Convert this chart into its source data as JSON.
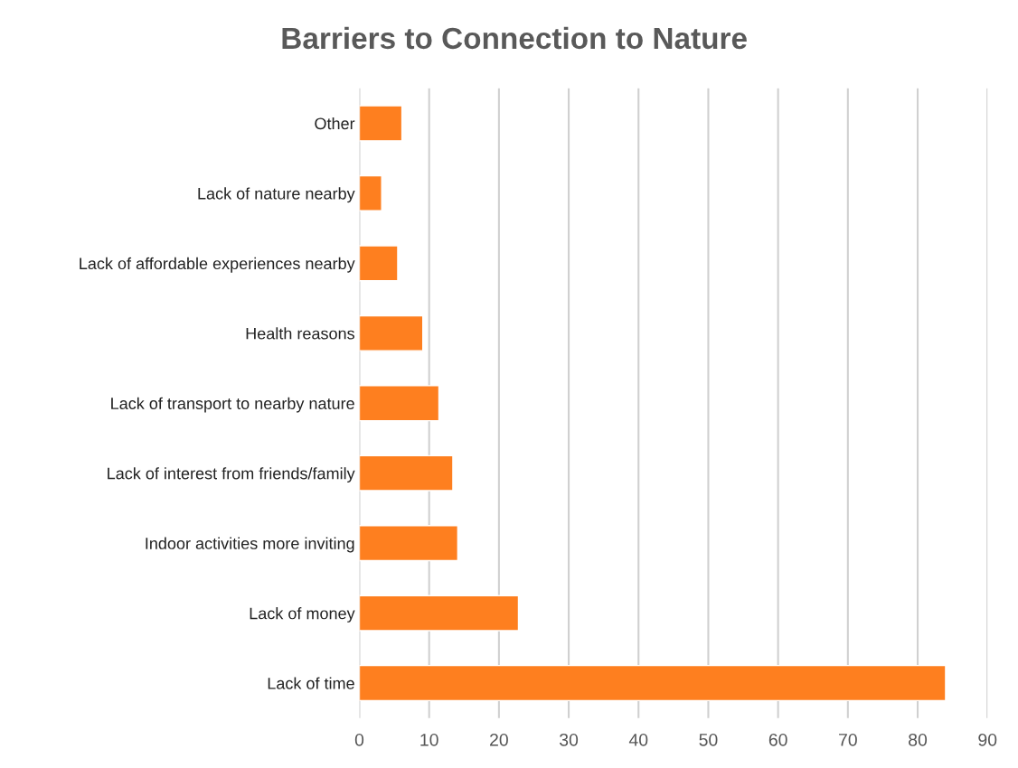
{
  "chart_data": {
    "type": "bar",
    "orientation": "horizontal",
    "title": "Barriers to Connection to Nature",
    "categories": [
      "Other",
      "Lack of nature nearby",
      "Lack of affordable experiences nearby",
      "Health reasons",
      "Lack of transport to nearby nature",
      "Lack of interest from friends/family",
      "Indoor activities more inviting",
      "Lack of money",
      "Lack of time"
    ],
    "values": [
      6.1,
      3.2,
      5.5,
      9.1,
      11.4,
      13.4,
      14.1,
      22.8,
      84.0
    ],
    "color": "#fe7f1f",
    "xlim": [
      0,
      90
    ],
    "xticks": [
      0,
      10,
      20,
      30,
      40,
      50,
      60,
      70,
      80,
      90
    ],
    "grid": "x"
  }
}
